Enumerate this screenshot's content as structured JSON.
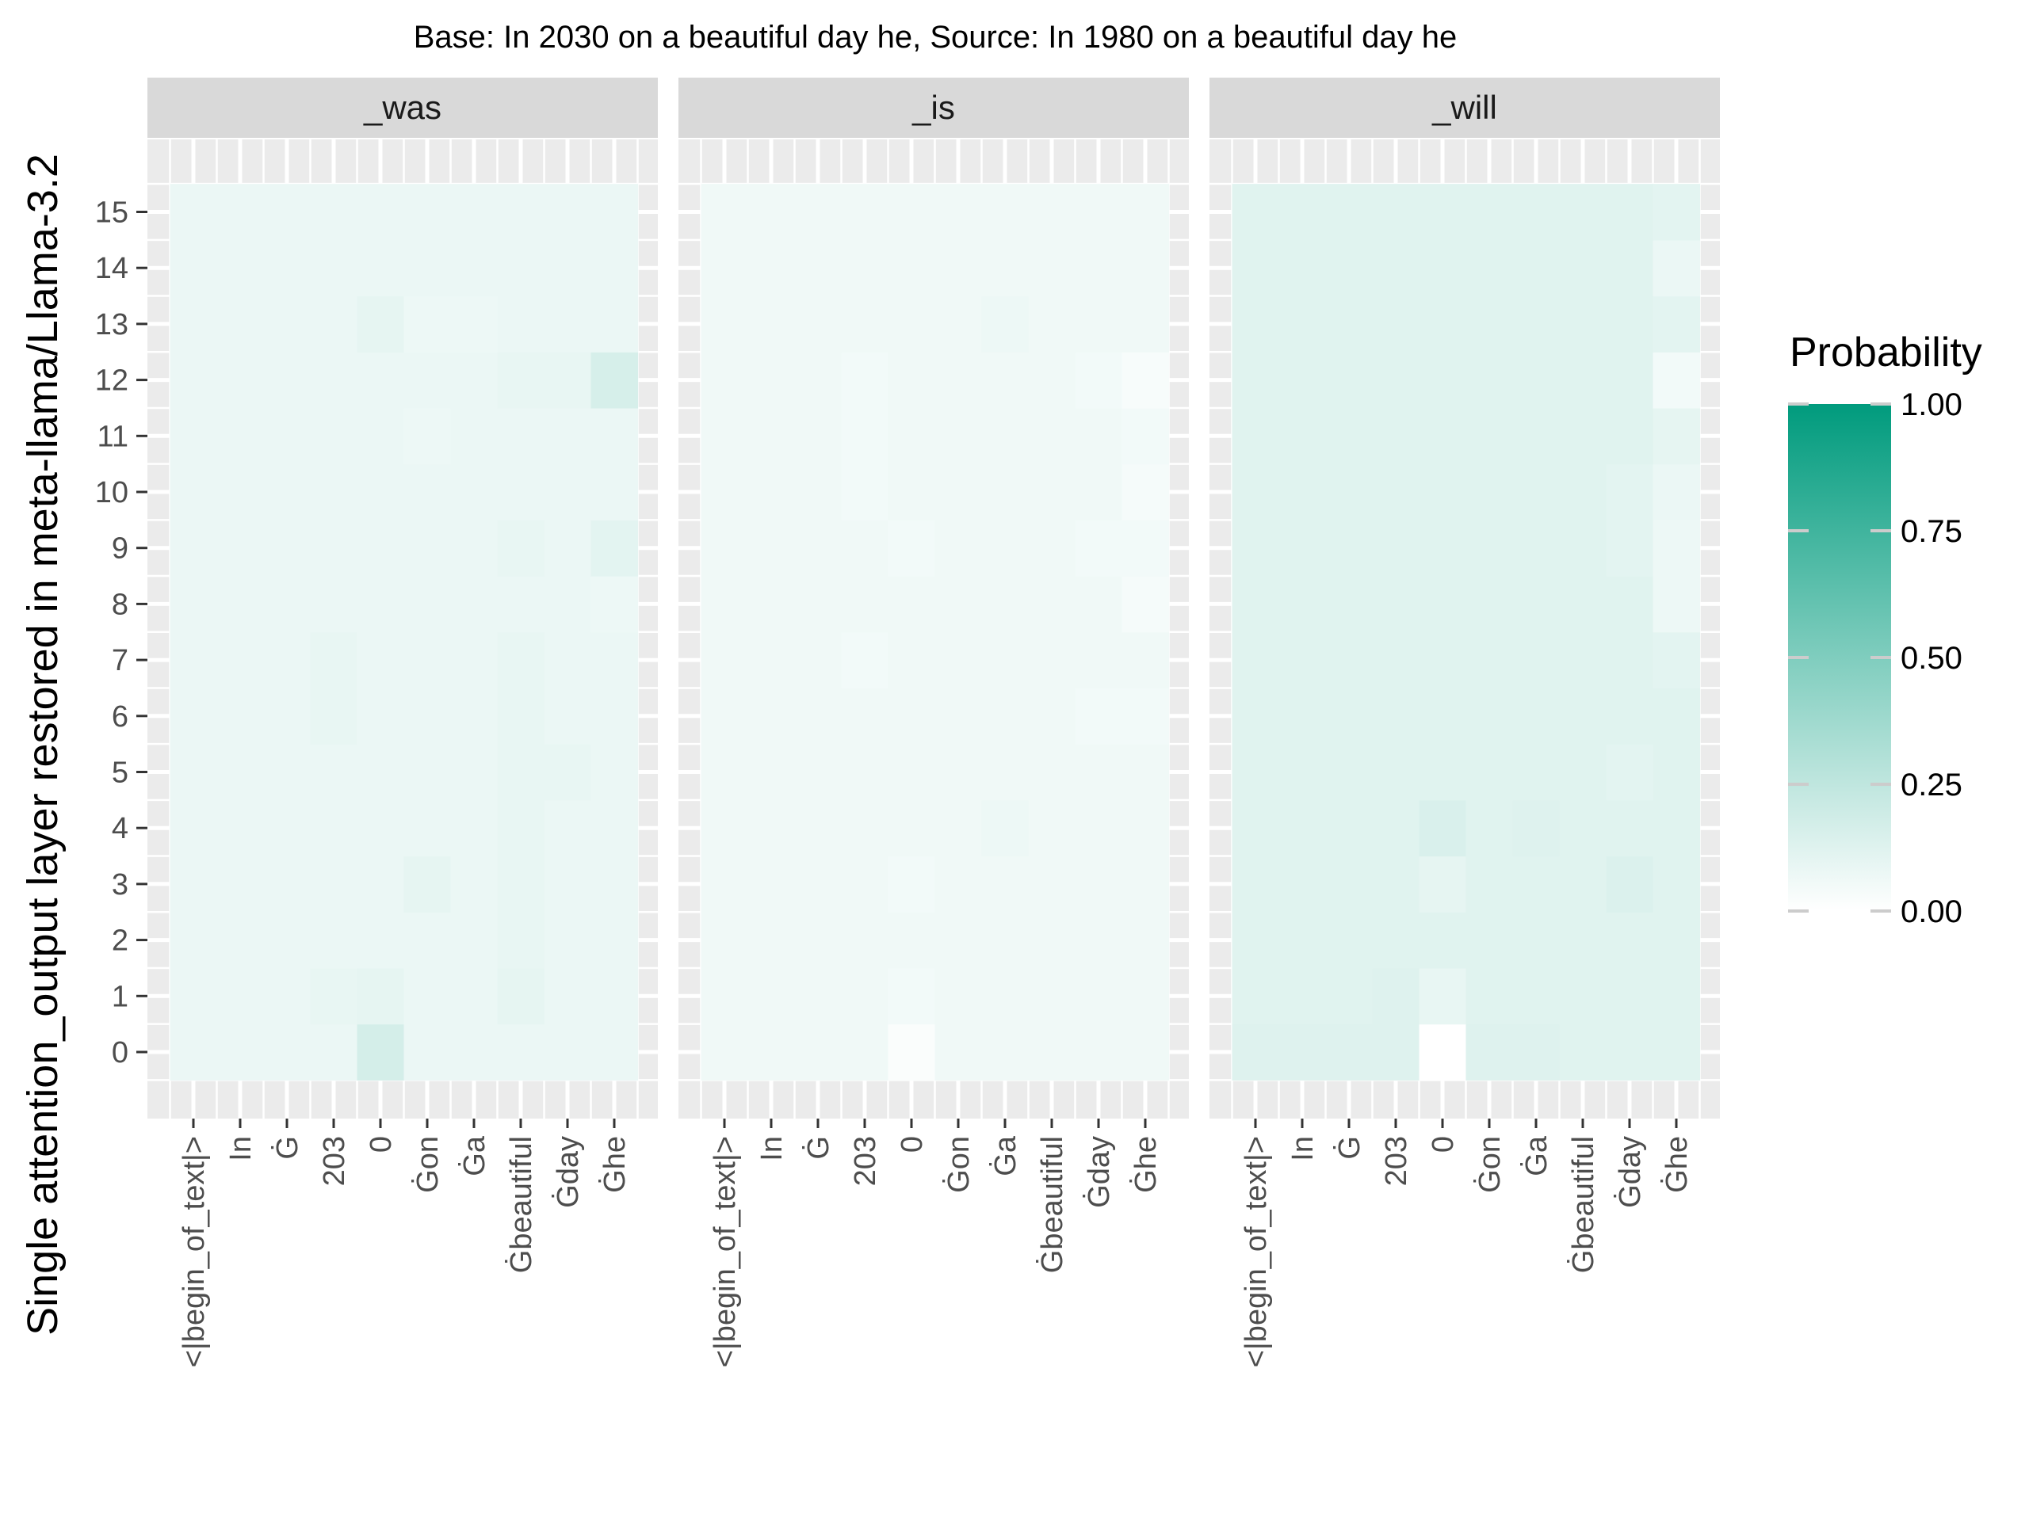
{
  "chart_data": {
    "type": "heatmap",
    "title": "Base: In 2030 on a beautiful day he, Source: In 1980 on a beautiful day he",
    "ylabel": "Single attention_output layer restored in meta-llama/Llama-3.2",
    "xlabel": "",
    "x_tokens": [
      "<|begin_of_text|>",
      "In",
      "Ġ",
      "203",
      "0",
      "Ġon",
      "Ġa",
      "Ġbeautiful",
      "Ġday",
      "Ġhe"
    ],
    "y_layers": [
      0,
      1,
      2,
      3,
      4,
      5,
      6,
      7,
      8,
      9,
      10,
      11,
      12,
      13,
      14,
      15
    ],
    "legend": {
      "title": "Probability",
      "ticks": [
        "1.00",
        "0.75",
        "0.50",
        "0.25",
        "0.00"
      ],
      "range": [
        0,
        1
      ],
      "color_low": "#ffffff",
      "color_high": "#009B7D",
      "placement": "right"
    },
    "panels": [
      {
        "name": "_was",
        "values": [
          [
            0.08,
            0.08,
            0.08,
            0.08,
            0.17,
            0.08,
            0.08,
            0.08,
            0.08,
            0.08
          ],
          [
            0.08,
            0.08,
            0.08,
            0.09,
            0.1,
            0.08,
            0.08,
            0.1,
            0.08,
            0.08
          ],
          [
            0.08,
            0.08,
            0.08,
            0.08,
            0.08,
            0.08,
            0.08,
            0.09,
            0.08,
            0.08
          ],
          [
            0.08,
            0.08,
            0.08,
            0.08,
            0.08,
            0.1,
            0.08,
            0.09,
            0.08,
            0.08
          ],
          [
            0.08,
            0.08,
            0.08,
            0.08,
            0.08,
            0.08,
            0.08,
            0.09,
            0.08,
            0.08
          ],
          [
            0.08,
            0.08,
            0.08,
            0.08,
            0.08,
            0.08,
            0.08,
            0.09,
            0.09,
            0.08
          ],
          [
            0.08,
            0.08,
            0.08,
            0.09,
            0.08,
            0.08,
            0.08,
            0.09,
            0.08,
            0.08
          ],
          [
            0.08,
            0.08,
            0.08,
            0.09,
            0.08,
            0.08,
            0.08,
            0.09,
            0.08,
            0.08
          ],
          [
            0.08,
            0.08,
            0.08,
            0.08,
            0.08,
            0.08,
            0.08,
            0.08,
            0.08,
            0.07
          ],
          [
            0.08,
            0.08,
            0.08,
            0.08,
            0.08,
            0.08,
            0.08,
            0.09,
            0.08,
            0.11
          ],
          [
            0.08,
            0.08,
            0.08,
            0.08,
            0.08,
            0.08,
            0.08,
            0.08,
            0.08,
            0.08
          ],
          [
            0.08,
            0.08,
            0.08,
            0.08,
            0.08,
            0.07,
            0.08,
            0.08,
            0.08,
            0.08
          ],
          [
            0.08,
            0.08,
            0.08,
            0.08,
            0.08,
            0.08,
            0.08,
            0.09,
            0.09,
            0.16
          ],
          [
            0.08,
            0.08,
            0.08,
            0.08,
            0.1,
            0.07,
            0.07,
            0.08,
            0.08,
            0.08
          ],
          [
            0.08,
            0.08,
            0.08,
            0.08,
            0.08,
            0.08,
            0.08,
            0.08,
            0.08,
            0.08
          ],
          [
            0.08,
            0.08,
            0.08,
            0.08,
            0.08,
            0.08,
            0.08,
            0.08,
            0.08,
            0.08
          ]
        ]
      },
      {
        "name": "_is",
        "values": [
          [
            0.06,
            0.06,
            0.06,
            0.06,
            0.02,
            0.06,
            0.06,
            0.06,
            0.06,
            0.06
          ],
          [
            0.06,
            0.06,
            0.06,
            0.06,
            0.05,
            0.06,
            0.06,
            0.06,
            0.06,
            0.06
          ],
          [
            0.06,
            0.06,
            0.06,
            0.06,
            0.06,
            0.06,
            0.06,
            0.06,
            0.06,
            0.06
          ],
          [
            0.06,
            0.06,
            0.06,
            0.06,
            0.05,
            0.06,
            0.06,
            0.06,
            0.06,
            0.06
          ],
          [
            0.06,
            0.06,
            0.06,
            0.06,
            0.06,
            0.06,
            0.07,
            0.06,
            0.06,
            0.06
          ],
          [
            0.06,
            0.06,
            0.06,
            0.06,
            0.06,
            0.06,
            0.06,
            0.06,
            0.06,
            0.06
          ],
          [
            0.06,
            0.06,
            0.06,
            0.06,
            0.06,
            0.06,
            0.06,
            0.06,
            0.05,
            0.05
          ],
          [
            0.06,
            0.06,
            0.06,
            0.05,
            0.06,
            0.06,
            0.06,
            0.06,
            0.06,
            0.06
          ],
          [
            0.06,
            0.06,
            0.06,
            0.06,
            0.06,
            0.06,
            0.06,
            0.06,
            0.06,
            0.04
          ],
          [
            0.06,
            0.06,
            0.06,
            0.06,
            0.05,
            0.06,
            0.06,
            0.06,
            0.05,
            0.05
          ],
          [
            0.06,
            0.06,
            0.06,
            0.05,
            0.06,
            0.06,
            0.06,
            0.06,
            0.06,
            0.04
          ],
          [
            0.06,
            0.06,
            0.06,
            0.05,
            0.06,
            0.06,
            0.06,
            0.06,
            0.06,
            0.05
          ],
          [
            0.06,
            0.06,
            0.06,
            0.05,
            0.06,
            0.06,
            0.06,
            0.06,
            0.05,
            0.03
          ],
          [
            0.06,
            0.06,
            0.06,
            0.06,
            0.06,
            0.06,
            0.07,
            0.06,
            0.06,
            0.06
          ],
          [
            0.06,
            0.06,
            0.06,
            0.06,
            0.06,
            0.06,
            0.06,
            0.06,
            0.06,
            0.06
          ],
          [
            0.06,
            0.06,
            0.06,
            0.06,
            0.06,
            0.06,
            0.06,
            0.06,
            0.06,
            0.06
          ]
        ]
      },
      {
        "name": "_will",
        "values": [
          [
            0.13,
            0.13,
            0.13,
            0.13,
            0.0,
            0.13,
            0.13,
            0.12,
            0.12,
            0.12
          ],
          [
            0.12,
            0.12,
            0.12,
            0.13,
            0.09,
            0.12,
            0.12,
            0.12,
            0.12,
            0.12
          ],
          [
            0.12,
            0.12,
            0.12,
            0.12,
            0.12,
            0.12,
            0.12,
            0.12,
            0.12,
            0.12
          ],
          [
            0.12,
            0.12,
            0.12,
            0.12,
            0.1,
            0.12,
            0.12,
            0.12,
            0.14,
            0.12
          ],
          [
            0.12,
            0.12,
            0.12,
            0.12,
            0.15,
            0.12,
            0.13,
            0.12,
            0.12,
            0.12
          ],
          [
            0.12,
            0.12,
            0.12,
            0.12,
            0.12,
            0.12,
            0.12,
            0.12,
            0.11,
            0.12
          ],
          [
            0.12,
            0.12,
            0.12,
            0.12,
            0.12,
            0.12,
            0.12,
            0.12,
            0.12,
            0.12
          ],
          [
            0.12,
            0.12,
            0.12,
            0.12,
            0.12,
            0.12,
            0.12,
            0.12,
            0.12,
            0.11
          ],
          [
            0.12,
            0.12,
            0.12,
            0.12,
            0.12,
            0.12,
            0.12,
            0.12,
            0.12,
            0.07
          ],
          [
            0.12,
            0.12,
            0.12,
            0.12,
            0.12,
            0.12,
            0.12,
            0.12,
            0.11,
            0.07
          ],
          [
            0.12,
            0.12,
            0.12,
            0.12,
            0.12,
            0.12,
            0.12,
            0.12,
            0.11,
            0.08
          ],
          [
            0.12,
            0.12,
            0.12,
            0.12,
            0.12,
            0.12,
            0.12,
            0.12,
            0.12,
            0.1
          ],
          [
            0.12,
            0.12,
            0.12,
            0.12,
            0.12,
            0.12,
            0.12,
            0.12,
            0.12,
            0.05
          ],
          [
            0.12,
            0.12,
            0.12,
            0.12,
            0.12,
            0.12,
            0.12,
            0.12,
            0.12,
            0.11
          ],
          [
            0.12,
            0.12,
            0.12,
            0.12,
            0.12,
            0.12,
            0.12,
            0.12,
            0.12,
            0.08
          ],
          [
            0.12,
            0.12,
            0.12,
            0.12,
            0.12,
            0.12,
            0.12,
            0.12,
            0.12,
            0.11
          ]
        ]
      }
    ]
  }
}
